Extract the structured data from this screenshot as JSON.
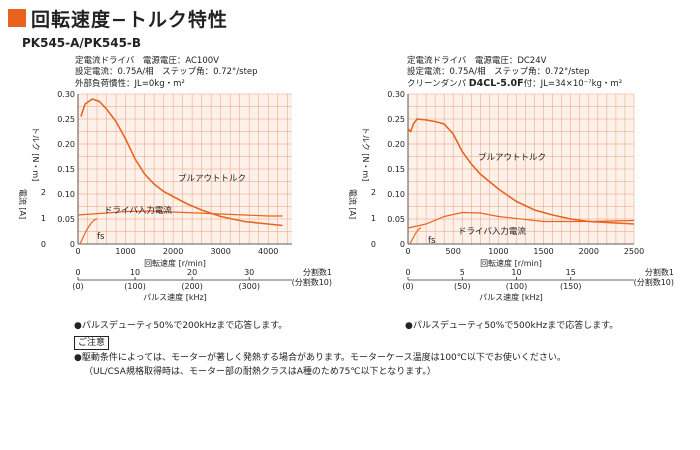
{
  "page": {
    "title": "回転速度−トルク特性",
    "model": "PK545-A/PK545-B"
  },
  "colors": {
    "accent": "#e8641e",
    "grid": "#e8a07a",
    "curve": "#e8641e"
  },
  "charts": [
    {
      "cond1": "定電流ドライバ　電源電圧：AC100V",
      "cond2": "設定電流：0.75A/相　ステップ角：0.72°/step",
      "cond3": "外部負荷慣性：JL=0kg・m²",
      "cond3_bold": "",
      "cond3_tail": ""
    },
    {
      "cond1": "定電流ドライバ　電源電圧：DC24V",
      "cond2": "設定電流：0.75A/相　ステップ角：0.72°/step",
      "cond3": "クリーンダンパ ",
      "cond3_bold": "D4CL-5.0F",
      "cond3_tail": "付：JL=34×10⁻⁷kg・m²"
    }
  ],
  "chart_data": [
    {
      "type": "line",
      "xlabel": "回転速度 [r/min]",
      "ylabel": "トルク [N・m]",
      "ylabel2": "電流 [A]",
      "xlim": [
        0,
        4500
      ],
      "ylim": [
        0,
        0.3
      ],
      "xticks": [
        0,
        1000,
        2000,
        3000,
        4000
      ],
      "yticks": [
        0,
        0.05,
        0.1,
        0.15,
        0.2,
        0.25,
        0.3
      ],
      "y2ticks": [
        0,
        1,
        2
      ],
      "pulse_axis": {
        "label": "パルス速度 [kHz]",
        "ticks": [
          {
            "value": "0",
            "sub": "(0)",
            "rpm": 0
          },
          {
            "value": "10",
            "sub": "(100)",
            "rpm": 1200
          },
          {
            "value": "20",
            "sub": "(200)",
            "rpm": 2400
          },
          {
            "value": "30",
            "sub": "(300)",
            "rpm": 3600
          }
        ],
        "end_label": "分割数1",
        "end_sub": "(分割数10)"
      },
      "series": [
        {
          "name": "プルアウトトルク",
          "x": [
            60,
            150,
            300,
            450,
            600,
            800,
            1000,
            1200,
            1400,
            1600,
            1800,
            2000,
            2300,
            2600,
            3000,
            3500,
            4000,
            4300
          ],
          "y": [
            0.255,
            0.28,
            0.29,
            0.285,
            0.27,
            0.245,
            0.21,
            0.17,
            0.14,
            0.12,
            0.105,
            0.095,
            0.08,
            0.068,
            0.055,
            0.045,
            0.04,
            0.037
          ]
        },
        {
          "name": "ドライバ入力電流",
          "x": [
            0,
            300,
            600,
            1000,
            1500,
            2000,
            2500,
            3000,
            3500,
            4000,
            4300
          ],
          "y": [
            0.058,
            0.06,
            0.062,
            0.065,
            0.066,
            0.064,
            0.062,
            0.06,
            0.058,
            0.056,
            0.056
          ]
        },
        {
          "name": "fs",
          "x": [
            40,
            100,
            160,
            220,
            280,
            340,
            400
          ],
          "y": [
            0.0,
            0.012,
            0.024,
            0.034,
            0.042,
            0.048,
            0.05
          ]
        }
      ]
    },
    {
      "type": "line",
      "xlabel": "回転速度 [r/min]",
      "ylabel": "トルク [N・m]",
      "ylabel2": "電流 [A]",
      "xlim": [
        0,
        2500
      ],
      "ylim": [
        0,
        0.3
      ],
      "xticks": [
        0,
        500,
        1000,
        1500,
        2000,
        2500
      ],
      "yticks": [
        0,
        0.05,
        0.1,
        0.15,
        0.2,
        0.25,
        0.3
      ],
      "y2ticks": [
        0,
        1,
        2
      ],
      "pulse_axis": {
        "label": "パルス速度 [kHz]",
        "ticks": [
          {
            "value": "0",
            "sub": "(0)",
            "rpm": 0
          },
          {
            "value": "5",
            "sub": "(50)",
            "rpm": 600
          },
          {
            "value": "10",
            "sub": "(100)",
            "rpm": 1200
          },
          {
            "value": "15",
            "sub": "(150)",
            "rpm": 1800
          }
        ],
        "end_label": "分割数1",
        "end_sub": "(分割数10)"
      },
      "series": [
        {
          "name": "プルアウトトルク",
          "x": [
            0,
            30,
            60,
            100,
            200,
            300,
            400,
            500,
            600,
            700,
            800,
            1000,
            1200,
            1400,
            1600,
            1800,
            2000,
            2200,
            2500
          ],
          "y": [
            0.23,
            0.225,
            0.24,
            0.25,
            0.248,
            0.245,
            0.24,
            0.22,
            0.185,
            0.16,
            0.14,
            0.11,
            0.085,
            0.068,
            0.058,
            0.05,
            0.045,
            0.043,
            0.04
          ]
        },
        {
          "name": "ドライバ入力電流",
          "x": [
            0,
            200,
            400,
            600,
            800,
            1000,
            1500,
            2000,
            2500
          ],
          "y": [
            0.032,
            0.04,
            0.055,
            0.063,
            0.062,
            0.055,
            0.045,
            0.045,
            0.047
          ]
        },
        {
          "name": "fs",
          "x": [
            20,
            50,
            80,
            110,
            140
          ],
          "y": [
            0.0,
            0.01,
            0.02,
            0.028,
            0.033
          ]
        }
      ]
    }
  ],
  "labels": {
    "pullout": "プルアウトトルク",
    "current": "ドライバ入力電流",
    "fs": "fs"
  },
  "notes": {
    "left": "●パルスデューティ50%で200kHzまで応答します。",
    "right": "●パルスデューティ50%で500kHzまで応答します。",
    "caution_title": "ご注意",
    "caution1": "●駆動条件によっては、モーターが著しく発熱する場合があります。モーターケース温度は100℃以下でお使いください。",
    "caution2": "（UL/CSA規格取得時は、モーター部の耐熱クラスはA種のため75℃以下となります。）"
  }
}
